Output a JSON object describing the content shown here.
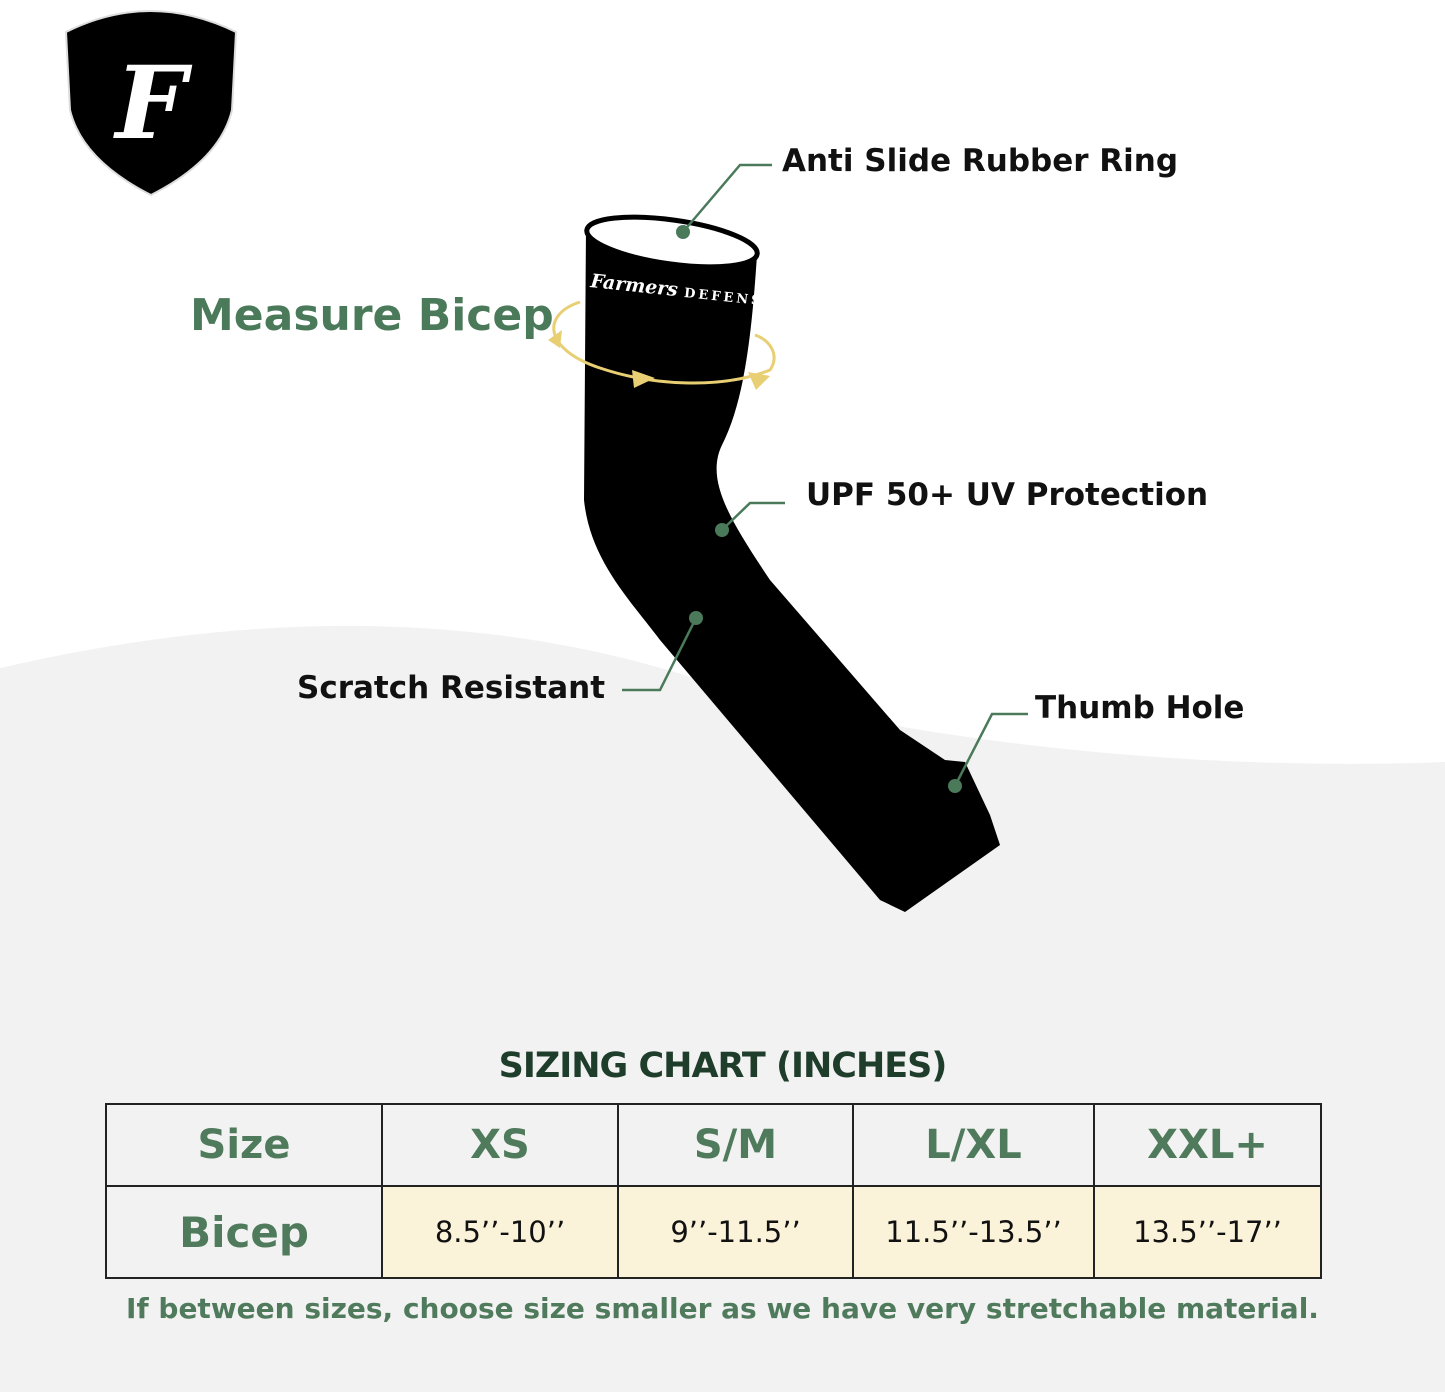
{
  "logo": {
    "letter": "F",
    "brand_text": "Farmers DEFENSE"
  },
  "callouts": {
    "measure": "Measure Bicep",
    "ring": "Anti Slide Rubber Ring",
    "upf": "UPF 50+ UV Protection",
    "scratch": "Scratch Resistant",
    "thumb": "Thumb Hole"
  },
  "sizing": {
    "title": "SIZING CHART (INCHES)",
    "header": [
      "Size",
      "XS",
      "S/M",
      "L/XL",
      "XXL+"
    ],
    "row": [
      "Bicep",
      "8.5’’-10’’",
      "9’’-11.5’’",
      "11.5’’-13.5’’",
      "13.5’’-17’’"
    ],
    "note": "If between sizes, choose size smaller as we have very stretchable material."
  },
  "colors": {
    "green": "#4f7a5c",
    "dark_green": "#1f3d2b",
    "cream": "#faf3d9",
    "arrow_yellow": "#e8cf74",
    "background_gray": "#f2f2f2"
  }
}
